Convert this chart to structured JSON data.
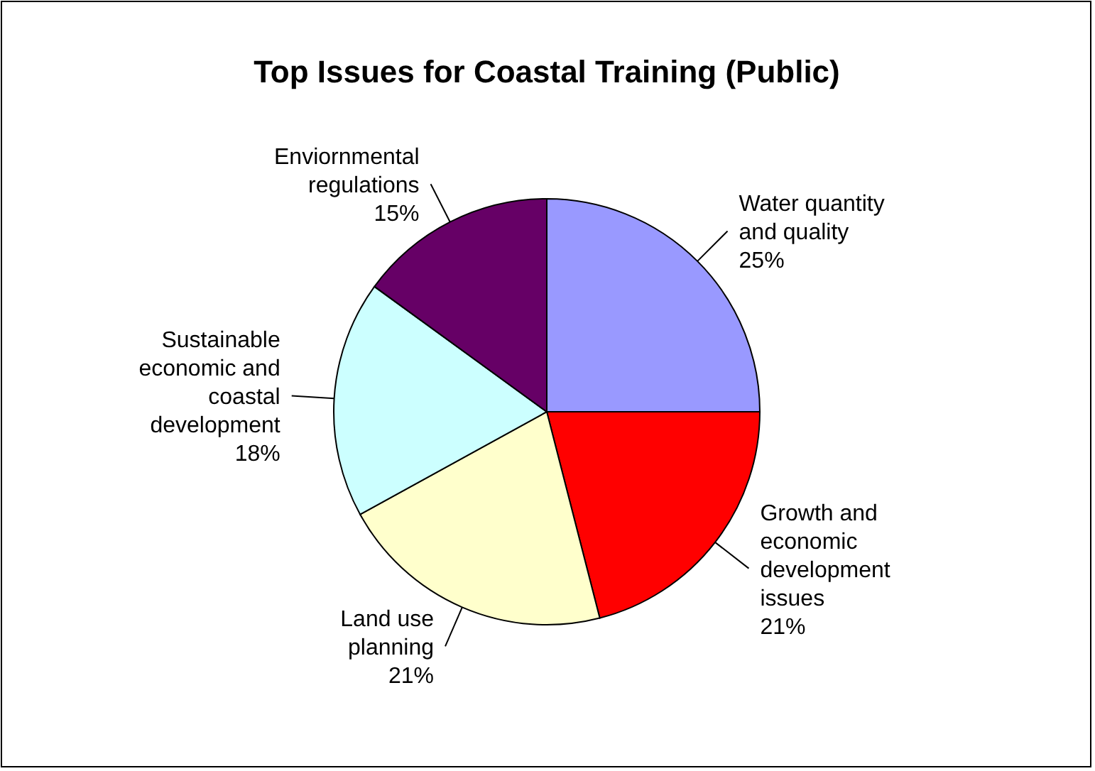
{
  "chart_data": {
    "type": "pie",
    "title": "Top Issues for Coastal Training (Public)",
    "categories": [
      "Water quantity and quality",
      "Growth and economic development issues",
      "Land use planning",
      "Sustainable economic and coastal development",
      "Enviornmental regulations"
    ],
    "values": [
      25,
      21,
      21,
      18,
      15
    ],
    "colors": [
      "#9999ff",
      "#ff0000",
      "#ffffcc",
      "#ccffff",
      "#660066"
    ],
    "value_labels": [
      "25%",
      "21%",
      "21%",
      "18%",
      "15%"
    ]
  }
}
